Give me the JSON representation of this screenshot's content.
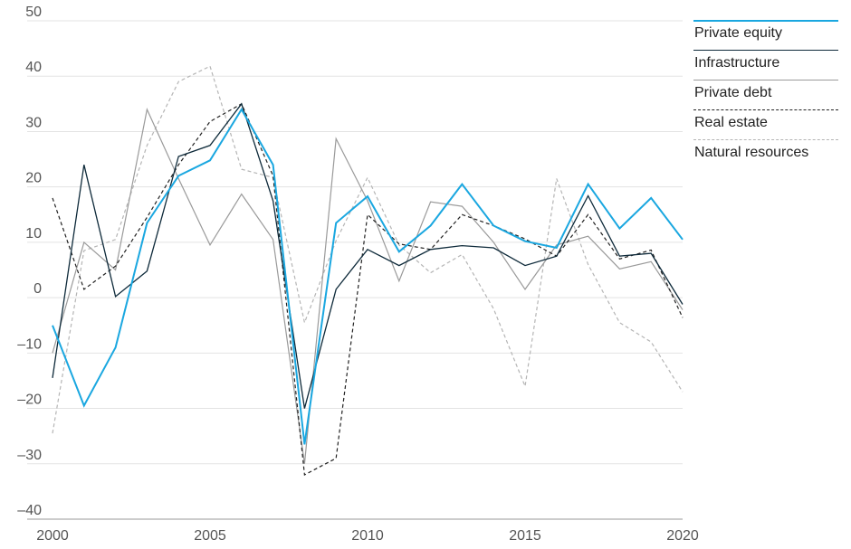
{
  "chart_data": {
    "type": "line",
    "title": "",
    "xlabel": "",
    "ylabel": "",
    "x": [
      2000,
      2001,
      2002,
      2003,
      2004,
      2005,
      2006,
      2007,
      2008,
      2009,
      2010,
      2011,
      2012,
      2013,
      2014,
      2015,
      2016,
      2017,
      2018,
      2019,
      2020
    ],
    "xlim": [
      2000,
      2020
    ],
    "ylim": [
      -40,
      50
    ],
    "x_ticks": [
      "2000",
      "2005",
      "2010",
      "2015",
      "2020"
    ],
    "y_ticks": [
      "50",
      "40",
      "30",
      "20",
      "10",
      "0",
      "–10",
      "–20",
      "–30",
      "–40"
    ],
    "grid": "horizontal",
    "legend_position": "top-right",
    "series": [
      {
        "name": "Private equity",
        "color": "#1aa7e0",
        "style": "solid",
        "values": [
          -5,
          -19.5,
          -9,
          13.5,
          22,
          24.8,
          34,
          24,
          -26.5,
          13.5,
          18.3,
          8.3,
          13,
          20.5,
          13,
          10.2,
          9,
          20.5,
          12.5,
          18,
          10.5
        ]
      },
      {
        "name": "Infrastructure",
        "color": "#0e2a3a",
        "style": "solid",
        "values": [
          -14.5,
          24,
          0.2,
          4.8,
          25.5,
          27.5,
          35,
          17.5,
          -20,
          1.5,
          8.7,
          5.8,
          8.7,
          9.4,
          9,
          5.8,
          7.5,
          18.4,
          7.5,
          8,
          -1.2
        ]
      },
      {
        "name": "Private debt",
        "color": "#9a9a9a",
        "style": "solid",
        "values": [
          -10,
          10,
          5,
          34,
          21.5,
          9.5,
          18.7,
          10.5,
          -30,
          28.7,
          17.5,
          3,
          17.3,
          16.5,
          10,
          1.5,
          9.5,
          11.1,
          5.2,
          6.5,
          -2.2
        ]
      },
      {
        "name": "Real estate",
        "color": "#222222",
        "style": "dashed",
        "values": [
          18,
          1.5,
          5.7,
          14.5,
          24,
          31.8,
          35,
          22,
          -32,
          -29,
          15,
          9.7,
          8.7,
          15,
          13,
          10.6,
          7.5,
          15,
          7,
          8.6,
          -3.6
        ]
      },
      {
        "name": "Natural resources",
        "color": "#b5b5b5",
        "style": "dashed",
        "values": [
          -24.5,
          8.5,
          10.5,
          27.5,
          39,
          41.8,
          23.2,
          21.7,
          -4.5,
          10.3,
          21.7,
          9.5,
          4.5,
          7.8,
          -2,
          -16,
          21.5,
          6,
          -4.5,
          -8,
          -17
        ]
      }
    ]
  }
}
